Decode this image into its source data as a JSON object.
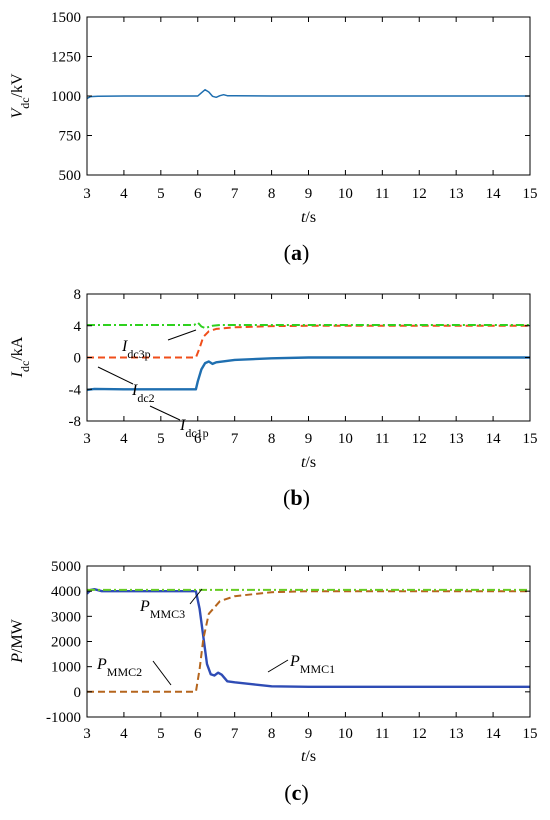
{
  "chart_data": [
    {
      "type": "line",
      "caption": "a",
      "xlabel": "t",
      "xlabel_unit": "/s",
      "ylabel": "V",
      "ylabel_sub": "dc",
      "ylabel_unit": "/kV",
      "xlim": [
        3,
        15
      ],
      "ylim": [
        500,
        1500
      ],
      "xticks": [
        3,
        4,
        5,
        6,
        7,
        8,
        9,
        10,
        11,
        12,
        13,
        14,
        15
      ],
      "yticks": [
        500,
        750,
        1000,
        1250,
        1500
      ],
      "grid": false,
      "series": [
        {
          "color": "#1f6fb0",
          "dash": "solid",
          "points": [
            [
              3.0,
              985
            ],
            [
              3.1,
              996
            ],
            [
              3.3,
              999
            ],
            [
              4.0,
              1000
            ],
            [
              5.0,
              1000
            ],
            [
              6.0,
              1000
            ],
            [
              6.1,
              1020
            ],
            [
              6.2,
              1040
            ],
            [
              6.3,
              1025
            ],
            [
              6.4,
              998
            ],
            [
              6.5,
              992
            ],
            [
              6.6,
              1002
            ],
            [
              6.7,
              1008
            ],
            [
              6.8,
              1002
            ],
            [
              7.0,
              1001
            ],
            [
              8.0,
              1000
            ],
            [
              15.0,
              1000
            ]
          ]
        }
      ],
      "annotations": []
    },
    {
      "type": "line",
      "caption": "b",
      "xlabel": "t",
      "xlabel_unit": "/s",
      "ylabel": "I",
      "ylabel_sub": "dc",
      "ylabel_unit": "/kA",
      "xlim": [
        3,
        15
      ],
      "ylim": [
        -8,
        8
      ],
      "xticks": [
        3,
        4,
        5,
        6,
        7,
        8,
        9,
        10,
        11,
        12,
        13,
        14,
        15
      ],
      "yticks": [
        -8,
        -4,
        0,
        4,
        8
      ],
      "grid": false,
      "series": [
        {
          "name": "dc1p",
          "color": "#1f6fb0",
          "dash": "solid",
          "points": [
            [
              3.0,
              -4.1
            ],
            [
              3.2,
              -3.95
            ],
            [
              4.0,
              -4.0
            ],
            [
              5.0,
              -4.0
            ],
            [
              5.95,
              -4.0
            ],
            [
              6.0,
              -3.0
            ],
            [
              6.1,
              -1.5
            ],
            [
              6.2,
              -0.7
            ],
            [
              6.3,
              -0.5
            ],
            [
              6.4,
              -0.8
            ],
            [
              6.5,
              -0.6
            ],
            [
              7.0,
              -0.3
            ],
            [
              8.0,
              -0.1
            ],
            [
              9.0,
              0.0
            ],
            [
              15.0,
              0.0
            ]
          ]
        },
        {
          "name": "dc2",
          "color": "#f04e1a",
          "dash": "dash",
          "points": [
            [
              3.0,
              0.0
            ],
            [
              5.95,
              0.0
            ],
            [
              6.05,
              1.2
            ],
            [
              6.15,
              2.6
            ],
            [
              6.3,
              3.3
            ],
            [
              6.5,
              3.6
            ],
            [
              7.0,
              3.8
            ],
            [
              8.0,
              3.95
            ],
            [
              9.0,
              4.0
            ],
            [
              15.0,
              4.0
            ]
          ]
        },
        {
          "name": "dc3p",
          "color": "#2fd11f",
          "dash": "dashdot",
          "points": [
            [
              3.0,
              4.1
            ],
            [
              5.9,
              4.1
            ],
            [
              6.0,
              4.4
            ],
            [
              6.1,
              3.9
            ],
            [
              6.2,
              3.7
            ],
            [
              6.4,
              4.0
            ],
            [
              6.6,
              4.1
            ],
            [
              15.0,
              4.1
            ]
          ]
        }
      ],
      "annotations": [
        {
          "main": "I",
          "sub": "dc3p"
        },
        {
          "main": "I",
          "sub": "dc2"
        },
        {
          "main": "I",
          "sub": "dc1p"
        }
      ]
    },
    {
      "type": "line",
      "caption": "c",
      "xlabel": "t",
      "xlabel_unit": "/s",
      "ylabel": "P",
      "ylabel_sub": "",
      "ylabel_unit": "/MW",
      "xlim": [
        3,
        15
      ],
      "ylim": [
        -1000,
        5000
      ],
      "xticks": [
        3,
        4,
        5,
        6,
        7,
        8,
        9,
        10,
        11,
        12,
        13,
        14,
        15
      ],
      "yticks": [
        -1000,
        0,
        1000,
        2000,
        3000,
        4000,
        5000
      ],
      "grid": false,
      "series": [
        {
          "name": "MMC1",
          "color": "#2f4cb5",
          "dash": "solid",
          "points": [
            [
              3.0,
              3900
            ],
            [
              3.1,
              4050
            ],
            [
              3.2,
              4080
            ],
            [
              3.4,
              4000
            ],
            [
              4.0,
              4000
            ],
            [
              5.0,
              4000
            ],
            [
              5.95,
              4000
            ],
            [
              6.05,
              3300
            ],
            [
              6.15,
              2200
            ],
            [
              6.25,
              1100
            ],
            [
              6.35,
              700
            ],
            [
              6.45,
              650
            ],
            [
              6.55,
              760
            ],
            [
              6.65,
              680
            ],
            [
              6.8,
              420
            ],
            [
              7.0,
              380
            ],
            [
              7.5,
              300
            ],
            [
              8.0,
              220
            ],
            [
              9.0,
              200
            ],
            [
              15.0,
              200
            ]
          ]
        },
        {
          "name": "MMC2",
          "color": "#b5651d",
          "dash": "dash",
          "points": [
            [
              3.0,
              0
            ],
            [
              5.95,
              0
            ],
            [
              6.05,
              900
            ],
            [
              6.15,
              2100
            ],
            [
              6.3,
              3100
            ],
            [
              6.6,
              3600
            ],
            [
              7.0,
              3800
            ],
            [
              8.0,
              3960
            ],
            [
              9.0,
              4000
            ],
            [
              15.0,
              4000
            ]
          ]
        },
        {
          "name": "MMC3",
          "color": "#66cc22",
          "dash": "dashdot",
          "points": [
            [
              3.0,
              4050
            ],
            [
              15.0,
              4050
            ]
          ]
        }
      ],
      "annotations": [
        {
          "main": "P",
          "sub": "MMC3"
        },
        {
          "main": "P",
          "sub": "MMC2"
        },
        {
          "main": "P",
          "sub": "MMC1"
        }
      ]
    }
  ]
}
